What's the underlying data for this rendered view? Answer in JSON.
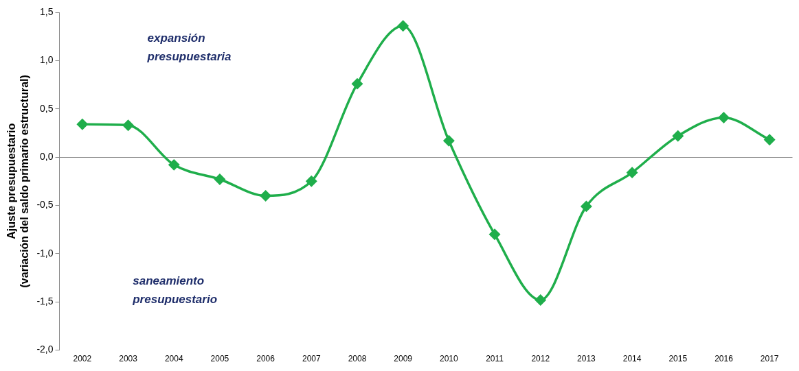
{
  "chart_data": {
    "type": "line",
    "ylabel": "Ajuste presupuestario\n(variación del saldo primario estructural)",
    "categories": [
      "2002",
      "2003",
      "2004",
      "2005",
      "2006",
      "2007",
      "2008",
      "2009",
      "2010",
      "2011",
      "2012",
      "2013",
      "2014",
      "2015",
      "2016",
      "2017"
    ],
    "series": [
      {
        "color": "#1fae4b",
        "values": [
          0.34,
          0.33,
          -0.08,
          -0.23,
          -0.4,
          -0.25,
          0.76,
          1.36,
          0.17,
          -0.8,
          -1.48,
          -0.51,
          -0.16,
          0.22,
          0.41,
          0.18
        ]
      }
    ],
    "ylim": [
      -2.0,
      1.5
    ],
    "yticks": [
      {
        "value": -2.0,
        "label": "-2,0"
      },
      {
        "value": -1.5,
        "label": "-1,5"
      },
      {
        "value": -1.0,
        "label": "-1,0"
      },
      {
        "value": -0.5,
        "label": "-0,5"
      },
      {
        "value": 0,
        "label": "0,0"
      },
      {
        "value": 0.5,
        "label": "0,5"
      },
      {
        "value": 1.0,
        "label": "1,0"
      },
      {
        "value": 1.5,
        "label": "1,5"
      }
    ],
    "annotations": [
      "expansión\npresupuestaria",
      "saneamiento\npresupuestario"
    ],
    "legend": false,
    "marker": "diamond",
    "line_style": "solid"
  }
}
